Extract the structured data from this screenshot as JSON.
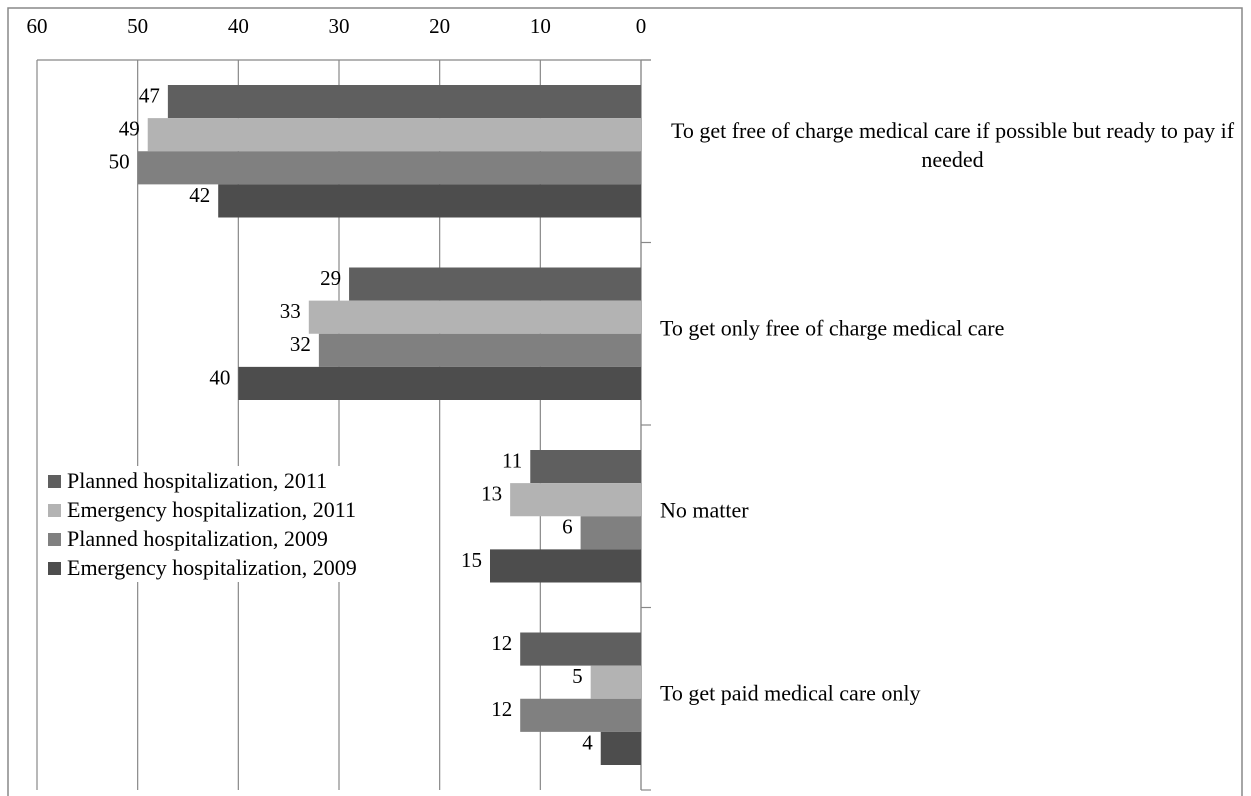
{
  "chart_data": {
    "type": "hbar",
    "categories": [
      "To get free of charge medical care if possible but ready to pay if needed",
      "To get only free of charge medical care",
      "No matter",
      "To get paid medical care only"
    ],
    "series": [
      {
        "name": "Planned hospitalization, 2011",
        "color": "#5f5f5f",
        "values": [
          47,
          29,
          11,
          12
        ]
      },
      {
        "name": "Emergency hospitalization, 2011",
        "color": "#b3b3b3",
        "values": [
          49,
          33,
          13,
          5
        ]
      },
      {
        "name": "Planned hospitalization, 2009",
        "color": "#808080",
        "values": [
          50,
          32,
          6,
          12
        ]
      },
      {
        "name": "Emergency hospitalization, 2009",
        "color": "#4d4d4d",
        "values": [
          42,
          40,
          15,
          4
        ]
      }
    ],
    "xlim": [
      0,
      60
    ],
    "xticks": [
      0,
      10,
      20,
      30,
      40,
      50,
      60
    ],
    "x_reversed": true,
    "grid": true,
    "legend": "lower left"
  }
}
